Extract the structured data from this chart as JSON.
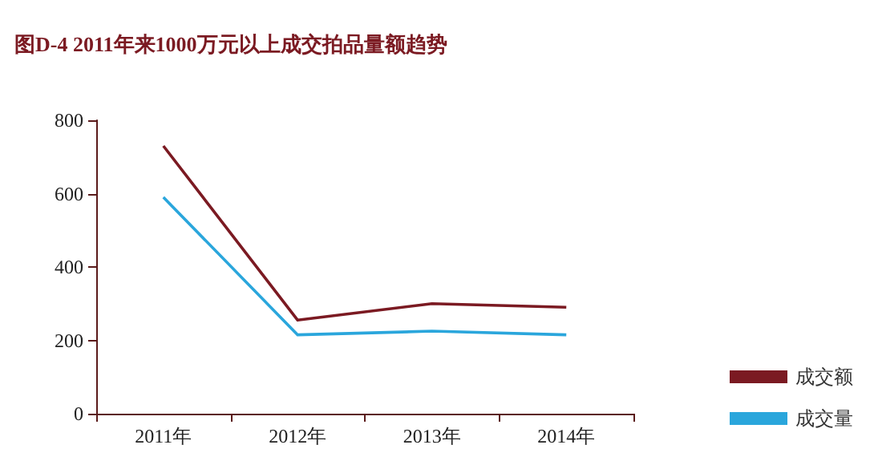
{
  "chart_data": {
    "type": "line",
    "title": "图D-4 2011年来1000万元以上成交拍品量额趋势",
    "categories": [
      "2011年",
      "2012年",
      "2013年",
      "2014年"
    ],
    "series": [
      {
        "name": "成交额",
        "color": "#7b1a22",
        "values": [
          730,
          255,
          300,
          290
        ]
      },
      {
        "name": "成交量",
        "color": "#2aa6dc",
        "values": [
          590,
          215,
          225,
          215
        ]
      }
    ],
    "ylim": [
      0,
      800
    ],
    "yticks": [
      0,
      200,
      400,
      600,
      800
    ],
    "grid": false,
    "legend": "bottom right",
    "marker": "none",
    "line_style": "solid"
  }
}
